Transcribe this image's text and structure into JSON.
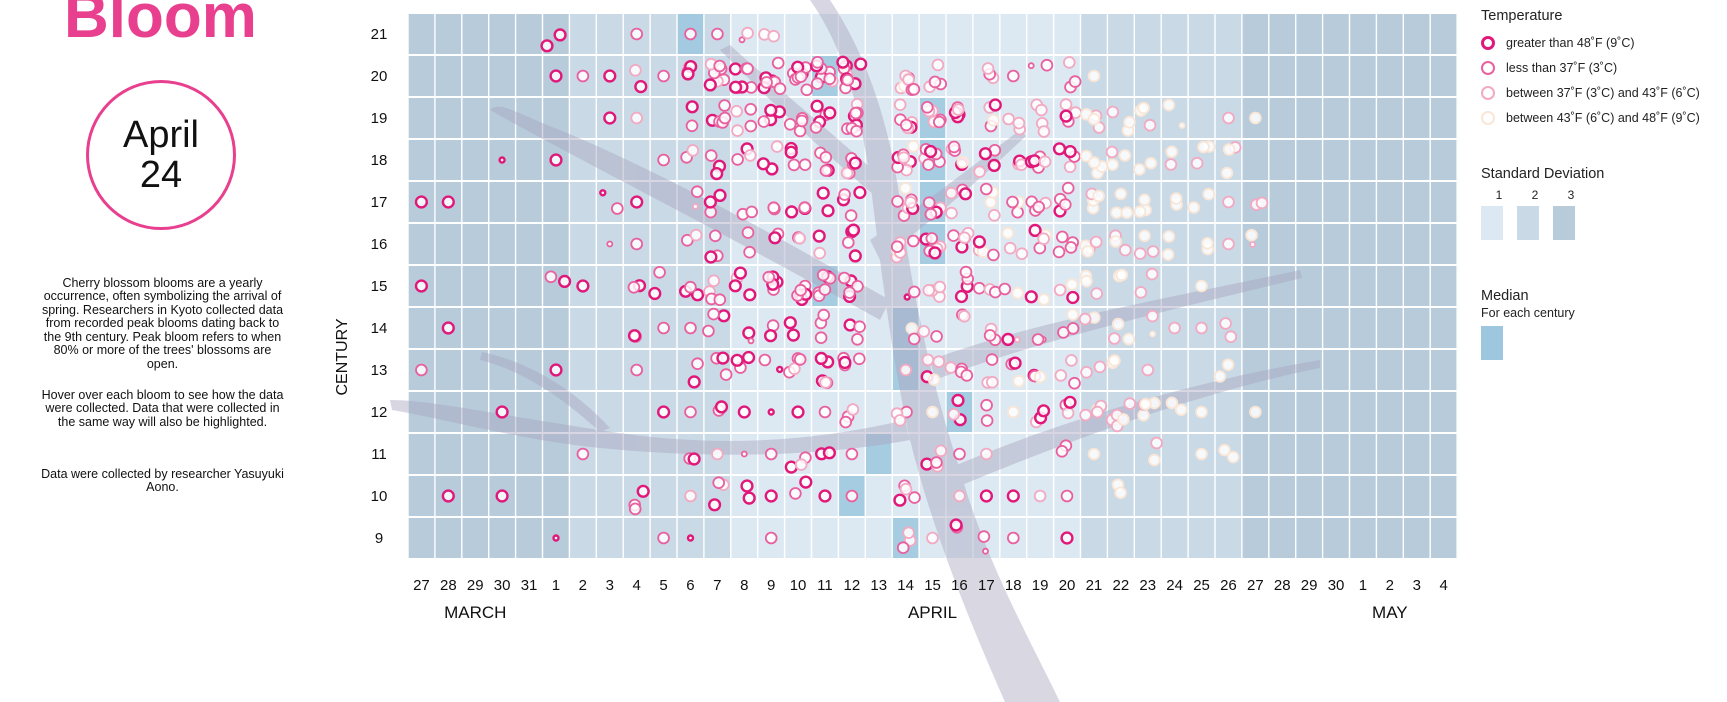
{
  "page": {
    "title": "Bloom",
    "date_month": "April",
    "date_day": "24",
    "description": "Cherry blossom blooms are a yearly occurrence, often symbolizing the arrival of spring. Researchers in Kyoto collected data from recorded peak blooms dating back to the 9th century. Peak bloom refers to when 80% or more of the trees' blossoms are open.",
    "hover_note": "Hover over each bloom to see how the data were collected. Data that were collected in the same way will also be highlighted.",
    "credit": "Data were collected by researcher Yasuyuki Aono."
  },
  "legend": {
    "temperature_title": "Temperature",
    "temperature_items": [
      {
        "label": "greater than 48˚F (9˚C)",
        "color": "#e0187a"
      },
      {
        "label": "less than 37˚F (3˚C)",
        "color": "#e9609f"
      },
      {
        "label": "between 37˚F (3˚C) and 43˚F (6˚C)",
        "color": "#f2a9c2"
      },
      {
        "label": "between 43˚F (6˚C) and 48˚F (9˚C)",
        "color": "#f9e6d6"
      }
    ],
    "sd_title": "Standard Deviation",
    "sd_labels": [
      "1",
      "2",
      "3"
    ],
    "sd_colors": [
      "#dde9f2",
      "#c9d9e6",
      "#b7cbdb"
    ],
    "median_title": "Median",
    "median_sub": "For each century",
    "median_color": "#9cc7de"
  },
  "chart_data": {
    "type": "scatter",
    "ylabel": "CENTURY",
    "x_ticks": [
      "27",
      "28",
      "29",
      "30",
      "31",
      "1",
      "2",
      "3",
      "4",
      "5",
      "6",
      "7",
      "8",
      "9",
      "10",
      "11",
      "12",
      "13",
      "14",
      "15",
      "16",
      "17",
      "18",
      "19",
      "20",
      "21",
      "22",
      "23",
      "24",
      "25",
      "26",
      "27",
      "28",
      "29",
      "30",
      "1",
      "2",
      "3",
      "4"
    ],
    "months": [
      {
        "label": "MARCH",
        "center": "29"
      },
      {
        "label": "APRIL",
        "center": "15"
      },
      {
        "label": "MAY",
        "center": "2"
      }
    ],
    "centuries": [
      21,
      20,
      19,
      18,
      17,
      16,
      15,
      14,
      13,
      12,
      11,
      10,
      9
    ],
    "sd_band_by_column": [
      3,
      3,
      3,
      3,
      3,
      3,
      2,
      2,
      2,
      2,
      2,
      2,
      1,
      1,
      1,
      1,
      1,
      1,
      1,
      1,
      1,
      1,
      1,
      1,
      1,
      2,
      2,
      2,
      2,
      2,
      2,
      3,
      3,
      3,
      3,
      3,
      3,
      3,
      3
    ],
    "medians": [
      {
        "century": 21,
        "date": "Apr 6"
      },
      {
        "century": 20,
        "date": "Apr 11"
      },
      {
        "century": 19,
        "date": "Apr 15"
      },
      {
        "century": 18,
        "date": "Apr 15"
      },
      {
        "century": 17,
        "date": "Apr 15"
      },
      {
        "century": 16,
        "date": "Apr 15"
      },
      {
        "century": 15,
        "date": "Apr 11"
      },
      {
        "century": 14,
        "date": "Apr 14"
      },
      {
        "century": 13,
        "date": "Apr 14"
      },
      {
        "century": 12,
        "date": "Apr 16"
      },
      {
        "century": 11,
        "date": "Apr 13"
      },
      {
        "century": 10,
        "date": "Apr 12"
      },
      {
        "century": 9,
        "date": "Apr 14"
      }
    ],
    "blooms_per_century": [
      {
        "century": 21,
        "counts": [
          0,
          0,
          0,
          0,
          0,
          2,
          0,
          0,
          1,
          0,
          1,
          1,
          2,
          2,
          0,
          0,
          0,
          0,
          0,
          0,
          0,
          0,
          0,
          0,
          0,
          0,
          0,
          0,
          0,
          0,
          0,
          0,
          0,
          0,
          0,
          0,
          0,
          0,
          0
        ]
      },
      {
        "century": 20,
        "counts": [
          0,
          0,
          0,
          0,
          0,
          1,
          1,
          1,
          2,
          1,
          4,
          8,
          8,
          7,
          8,
          8,
          9,
          0,
          7,
          4,
          0,
          3,
          1,
          2,
          3,
          1,
          0,
          0,
          0,
          0,
          0,
          0,
          0,
          0,
          0,
          0,
          0,
          0,
          0
        ]
      },
      {
        "century": 19,
        "counts": [
          0,
          0,
          0,
          0,
          0,
          0,
          0,
          1,
          1,
          0,
          2,
          5,
          4,
          4,
          4,
          5,
          8,
          0,
          6,
          6,
          5,
          4,
          3,
          4,
          4,
          4,
          3,
          3,
          2,
          0,
          1,
          1,
          0,
          0,
          0,
          0,
          0,
          0,
          0
        ]
      },
      {
        "century": 18,
        "counts": [
          0,
          0,
          0,
          1,
          0,
          1,
          0,
          0,
          0,
          1,
          2,
          3,
          3,
          3,
          4,
          4,
          5,
          0,
          7,
          6,
          5,
          4,
          3,
          5,
          4,
          4,
          3,
          2,
          2,
          3,
          3,
          0,
          0,
          0,
          0,
          0,
          0,
          0,
          0
        ]
      },
      {
        "century": 17,
        "counts": [
          1,
          1,
          0,
          0,
          0,
          0,
          0,
          2,
          1,
          0,
          2,
          3,
          2,
          2,
          3,
          2,
          4,
          0,
          7,
          5,
          4,
          4,
          3,
          4,
          4,
          4,
          3,
          3,
          2,
          2,
          1,
          2,
          0,
          0,
          0,
          0,
          0,
          0,
          0
        ]
      },
      {
        "century": 16,
        "counts": [
          0,
          0,
          0,
          0,
          0,
          0,
          0,
          1,
          1,
          0,
          2,
          3,
          2,
          2,
          2,
          2,
          4,
          0,
          6,
          6,
          5,
          4,
          3,
          4,
          4,
          4,
          3,
          3,
          2,
          2,
          1,
          2,
          0,
          0,
          0,
          0,
          0,
          0,
          0
        ]
      },
      {
        "century": 15,
        "counts": [
          1,
          0,
          0,
          0,
          0,
          2,
          1,
          0,
          2,
          2,
          3,
          4,
          5,
          5,
          6,
          6,
          5,
          0,
          2,
          4,
          4,
          3,
          2,
          2,
          3,
          3,
          2,
          2,
          0,
          1,
          0,
          0,
          0,
          0,
          0,
          0,
          0,
          0,
          0
        ]
      },
      {
        "century": 14,
        "counts": [
          0,
          1,
          0,
          0,
          0,
          0,
          0,
          0,
          2,
          1,
          1,
          3,
          2,
          2,
          2,
          3,
          3,
          0,
          2,
          2,
          2,
          3,
          2,
          2,
          3,
          2,
          3,
          2,
          1,
          1,
          2,
          0,
          0,
          0,
          0,
          0,
          0,
          0,
          0
        ]
      },
      {
        "century": 13,
        "counts": [
          1,
          0,
          0,
          0,
          0,
          1,
          0,
          0,
          1,
          0,
          2,
          3,
          3,
          2,
          4,
          5,
          4,
          0,
          1,
          4,
          4,
          3,
          3,
          3,
          3,
          2,
          2,
          1,
          0,
          0,
          2,
          0,
          0,
          0,
          0,
          0,
          0,
          0,
          0
        ]
      },
      {
        "century": 12,
        "counts": [
          0,
          0,
          0,
          1,
          0,
          0,
          0,
          0,
          0,
          1,
          1,
          2,
          1,
          1,
          1,
          1,
          3,
          0,
          3,
          1,
          3,
          2,
          1,
          3,
          3,
          4,
          5,
          4,
          2,
          1,
          0,
          1,
          0,
          0,
          0,
          0,
          0,
          0,
          0
        ]
      },
      {
        "century": 11,
        "counts": [
          0,
          0,
          0,
          0,
          0,
          0,
          1,
          0,
          0,
          0,
          2,
          1,
          1,
          1,
          3,
          2,
          1,
          0,
          0,
          4,
          1,
          1,
          0,
          0,
          2,
          1,
          0,
          2,
          0,
          1,
          2,
          0,
          0,
          0,
          0,
          0,
          0,
          0,
          0
        ]
      },
      {
        "century": 10,
        "counts": [
          0,
          1,
          0,
          1,
          0,
          0,
          0,
          0,
          3,
          0,
          1,
          3,
          2,
          1,
          2,
          1,
          1,
          0,
          4,
          0,
          1,
          1,
          1,
          1,
          1,
          0,
          2,
          0,
          0,
          0,
          0,
          0,
          0,
          0,
          0,
          0,
          0,
          0,
          0
        ]
      },
      {
        "century": 9,
        "counts": [
          0,
          0,
          0,
          0,
          0,
          1,
          0,
          0,
          0,
          1,
          1,
          0,
          0,
          1,
          0,
          0,
          0,
          0,
          3,
          1,
          2,
          2,
          1,
          0,
          1,
          0,
          0,
          0,
          0,
          0,
          0,
          0,
          0,
          0,
          0,
          0,
          0,
          0,
          0
        ]
      }
    ]
  }
}
